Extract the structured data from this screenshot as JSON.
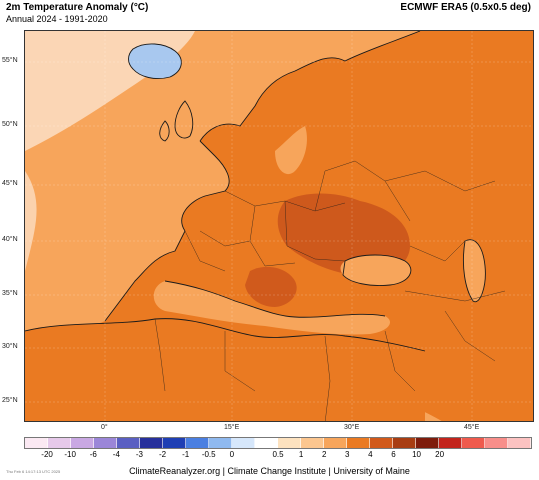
{
  "header": {
    "title": "2m Temperature Anomaly (°C)",
    "subtitle": "Annual 2024 - 1991-2020",
    "source": "ECMWF ERA5 (0.5x0.5 deg)"
  },
  "map": {
    "lat_labels": [
      "55°N",
      "50°N",
      "45°N",
      "40°N",
      "35°N",
      "30°N",
      "25°N"
    ],
    "lon_labels": [
      "0°",
      "15°E",
      "30°E",
      "45°E"
    ],
    "colors": {
      "sea": "#f7a55b",
      "land": "#ea7a22",
      "hot": "#c9531b",
      "cool": "#a8c8ef",
      "ice": "#ffffff",
      "border": "#1a1a1a"
    }
  },
  "legend": {
    "labels": [
      "-20",
      "-10",
      "-6",
      "-4",
      "-3",
      "-2",
      "-1",
      "-0.5",
      "0",
      "0.5",
      "1",
      "2",
      "3",
      "4",
      "6",
      "10",
      "20"
    ],
    "colors": [
      "#fbe9f3",
      "#e6c9ea",
      "#c9a8e3",
      "#9b86d8",
      "#5a5fc2",
      "#27309c",
      "#1f3fb4",
      "#4a7fe1",
      "#8fb9ef",
      "#d6e7fb",
      "#ffffff",
      "#fde2bf",
      "#fcc68f",
      "#f7a55b",
      "#ea7a22",
      "#d1591a",
      "#a83d12",
      "#7e1c0c",
      "#c2241c",
      "#ef5a4d",
      "#f88e8a",
      "#fcc2c1"
    ]
  },
  "footer": {
    "credit": "ClimateReanalyzer.org | Climate Change Institute | University of Maine",
    "stamp": "Thu Feb 6 14:17:13 UTC 2025"
  }
}
